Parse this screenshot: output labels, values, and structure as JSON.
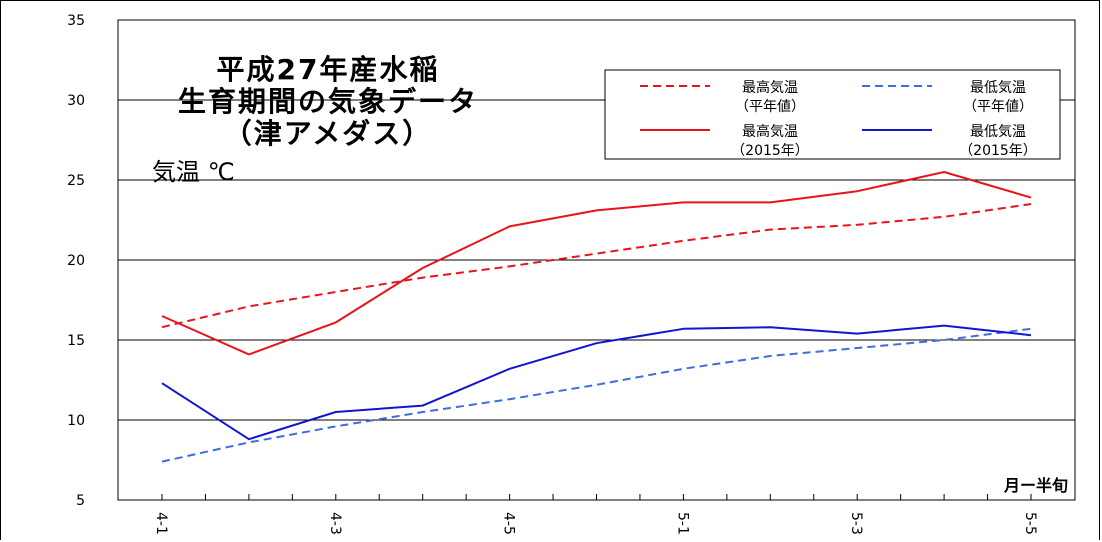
{
  "chart_data": {
    "type": "line",
    "title_lines": [
      "平成27年産水稲",
      "生育期間の気象データ",
      "（津アメダス）"
    ],
    "ylabel": "気温 ℃",
    "xlabel": "月ー半旬",
    "ylim": [
      5,
      35
    ],
    "yticks": [
      5,
      10,
      15,
      20,
      25,
      30,
      35
    ],
    "xticks": [
      "4-1",
      "4-3",
      "4-5",
      "5-1",
      "5-3",
      "5-5"
    ],
    "x": [
      "4-1",
      "4-2",
      "4-3",
      "4-4",
      "4-5",
      "4-6",
      "5-1",
      "5-2",
      "5-3",
      "5-4",
      "5-5"
    ],
    "grid": true,
    "legend_position": "top-right",
    "series": [
      {
        "name": "最高気温",
        "note": "（平年値）",
        "color": "#e8141b",
        "style": "dashed",
        "values": [
          15.8,
          17.1,
          18.0,
          18.9,
          19.6,
          20.4,
          21.2,
          21.9,
          22.2,
          22.7,
          23.5
        ]
      },
      {
        "name": "最低気温",
        "note": "（平年値）",
        "color": "#3b6fe0",
        "style": "dashed",
        "values": [
          7.4,
          8.6,
          9.6,
          10.5,
          11.3,
          12.2,
          13.2,
          14.0,
          14.5,
          15.0,
          15.7
        ]
      },
      {
        "name": "最高気温",
        "note": "（2015年）",
        "color": "#e8141b",
        "style": "solid",
        "values": [
          16.5,
          14.1,
          16.1,
          19.5,
          22.1,
          23.1,
          23.6,
          23.6,
          24.3,
          25.5,
          23.9
        ]
      },
      {
        "name": "最低気温",
        "note": "（2015年）",
        "color": "#1414d2",
        "style": "solid",
        "values": [
          12.3,
          8.8,
          10.5,
          10.9,
          13.2,
          14.8,
          15.7,
          15.8,
          15.4,
          15.9,
          15.3
        ]
      }
    ]
  }
}
